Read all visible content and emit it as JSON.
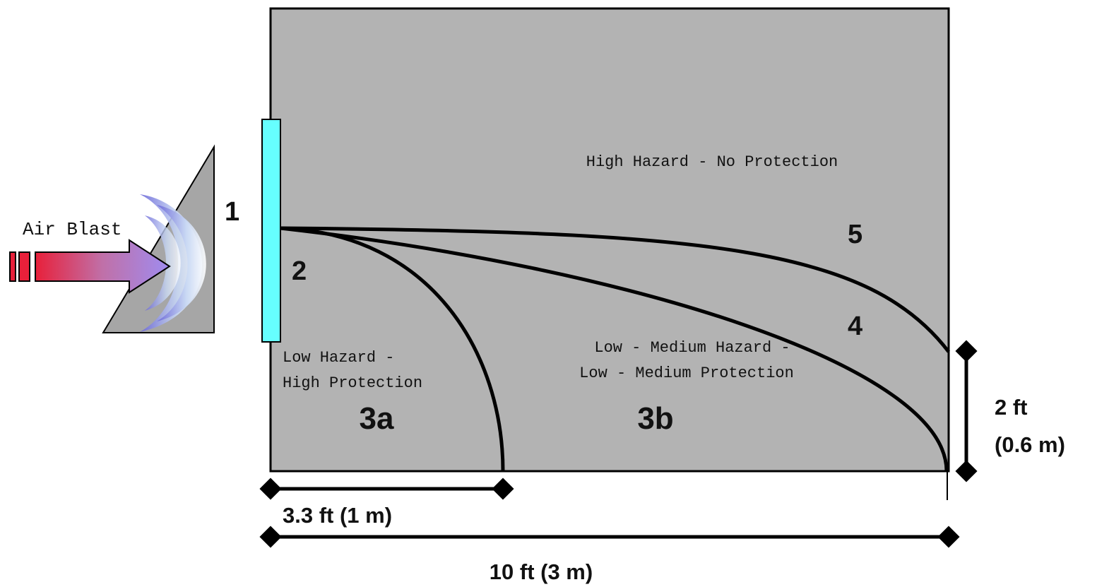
{
  "blast_label": "Air Blast",
  "markers": {
    "window": "1",
    "inner_face": "2",
    "zone_low": "3a",
    "zone_low_medium": "3b",
    "curve_4": "4",
    "curve_5": "5"
  },
  "zones": {
    "high": "High Hazard - No Protection",
    "low": [
      "Low Hazard -",
      "High Protection"
    ],
    "low_medium": [
      "Low - Medium Hazard -",
      "Low - Medium Protection"
    ]
  },
  "dimensions": {
    "short": "3.3 ft (1 m)",
    "long": "10 ft (3 m)",
    "height": [
      "2 ft",
      "(0.6 m)"
    ]
  }
}
